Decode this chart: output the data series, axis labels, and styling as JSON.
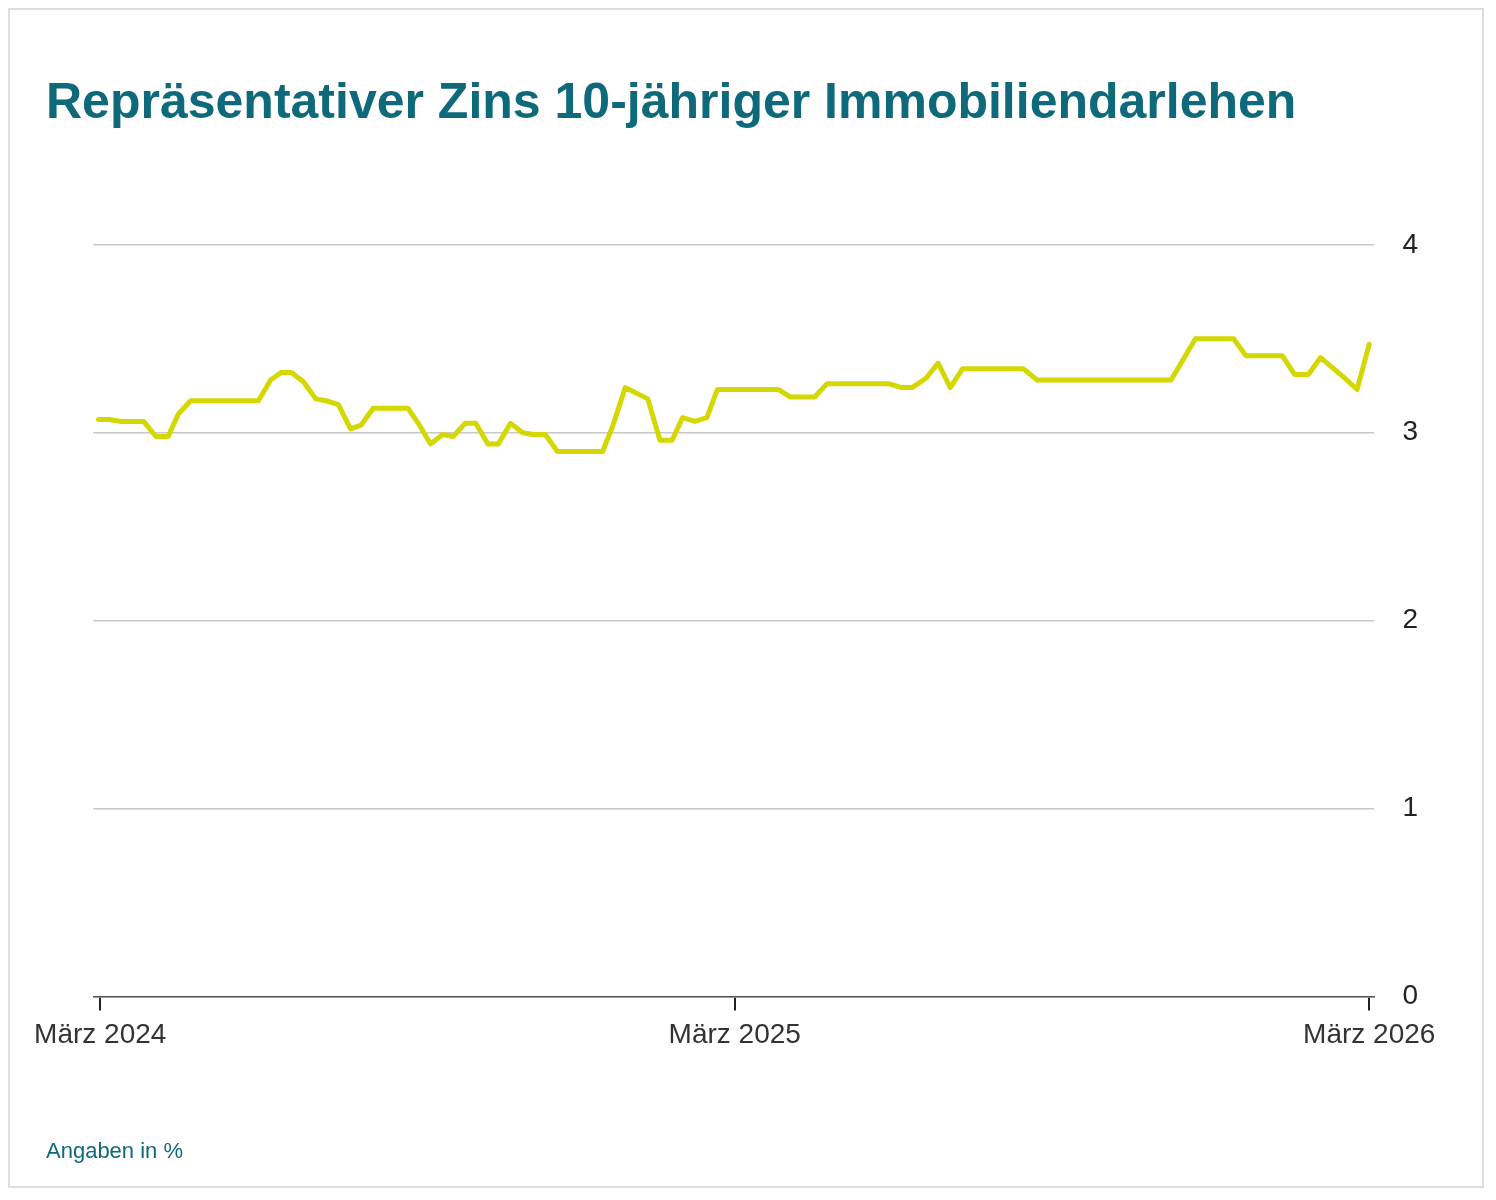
{
  "chart_data": {
    "type": "line",
    "title": "Repräsentativer Zins 10-jähriger Immobiliendarlehen",
    "x": [
      "2024-02-29",
      "2024-03-06",
      "2024-03-13",
      "2024-03-26",
      "2024-04-02",
      "2024-04-09",
      "2024-04-15",
      "2024-04-22",
      "2024-05-31",
      "2024-06-07",
      "2024-06-13",
      "2024-06-19",
      "2024-06-26",
      "2024-07-03",
      "2024-07-09",
      "2024-07-16",
      "2024-07-23",
      "2024-07-29",
      "2024-08-05",
      "2024-08-25",
      "2024-08-31",
      "2024-09-07",
      "2024-09-14",
      "2024-09-20",
      "2024-09-27",
      "2024-10-03",
      "2024-10-10",
      "2024-10-16",
      "2024-10-23",
      "2024-10-30",
      "2024-11-05",
      "2024-11-12",
      "2024-11-19",
      "2024-12-15",
      "2024-12-21",
      "2024-12-28",
      "2025-01-10",
      "2025-01-17",
      "2025-01-24",
      "2025-01-30",
      "2025-02-06",
      "2025-02-13",
      "2025-02-19",
      "2025-03-26",
      "2025-04-02",
      "2025-04-16",
      "2025-04-23",
      "2025-05-29",
      "2025-06-05",
      "2025-06-11",
      "2025-06-19",
      "2025-06-26",
      "2025-07-03",
      "2025-07-10",
      "2025-08-14",
      "2025-08-22",
      "2025-11-07",
      "2025-11-14",
      "2025-11-21",
      "2025-12-13",
      "2025-12-20",
      "2026-01-10",
      "2026-01-17",
      "2026-01-25",
      "2026-02-01",
      "2026-02-15",
      "2026-02-22",
      "2026-03-01"
    ],
    "series": [
      {
        "color": "#d4d800",
        "values": [
          3.07,
          3.07,
          3.06,
          3.06,
          2.98,
          2.98,
          3.1,
          3.17,
          3.17,
          3.28,
          3.32,
          3.32,
          3.27,
          3.18,
          3.17,
          3.15,
          3.02,
          3.04,
          3.13,
          3.13,
          3.05,
          2.94,
          2.99,
          2.98,
          3.05,
          3.05,
          2.94,
          2.94,
          3.05,
          3.0,
          2.99,
          2.99,
          2.9,
          2.9,
          3.04,
          3.24,
          3.18,
          2.96,
          2.96,
          3.08,
          3.06,
          3.08,
          3.23,
          3.23,
          3.19,
          3.19,
          3.26,
          3.26,
          3.24,
          3.24,
          3.29,
          3.37,
          3.24,
          3.34,
          3.34,
          3.28,
          3.28,
          3.39,
          3.5,
          3.5,
          3.41,
          3.41,
          3.31,
          3.31,
          3.4,
          3.29,
          3.23,
          3.47
        ]
      }
    ],
    "xlim": [
      "2024-02-26",
      "2026-03-04"
    ],
    "xticks": [
      {
        "value": "2024-03-01",
        "label": "März 2024"
      },
      {
        "value": "2025-03-01",
        "label": "März 2025"
      },
      {
        "value": "2026-03-01",
        "label": "März 2026"
      }
    ],
    "ylim": [
      0,
      4
    ],
    "yticks": [
      0,
      1,
      2,
      3,
      4
    ],
    "grid": "y",
    "legend": false,
    "marker": "none",
    "line_style": "solid",
    "annotations": [
      "Angaben in %"
    ]
  }
}
